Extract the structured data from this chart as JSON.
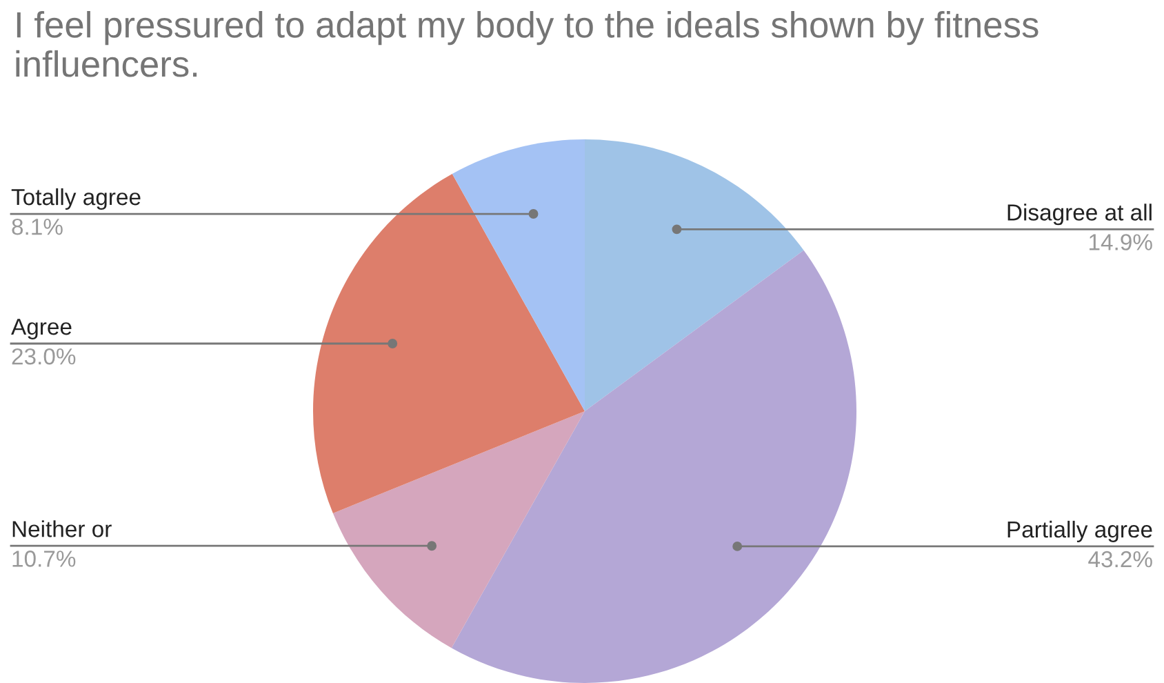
{
  "chart_data": {
    "type": "pie",
    "title": "I feel pressured to adapt my body to the ideals shown by fitness influencers.",
    "categories": [
      "Disagree at all",
      "Partially agree",
      "Neither or",
      "Agree",
      "Totally agree"
    ],
    "values": [
      14.9,
      43.2,
      10.7,
      23.0,
      8.1
    ],
    "value_labels": [
      "14.9%",
      "43.2%",
      "10.7%",
      "23.0%",
      "8.1%"
    ],
    "colors": [
      "#9fc3e7",
      "#b4a7d6",
      "#d5a6bd",
      "#dd7e6b",
      "#a4c2f4"
    ],
    "legend": false
  }
}
